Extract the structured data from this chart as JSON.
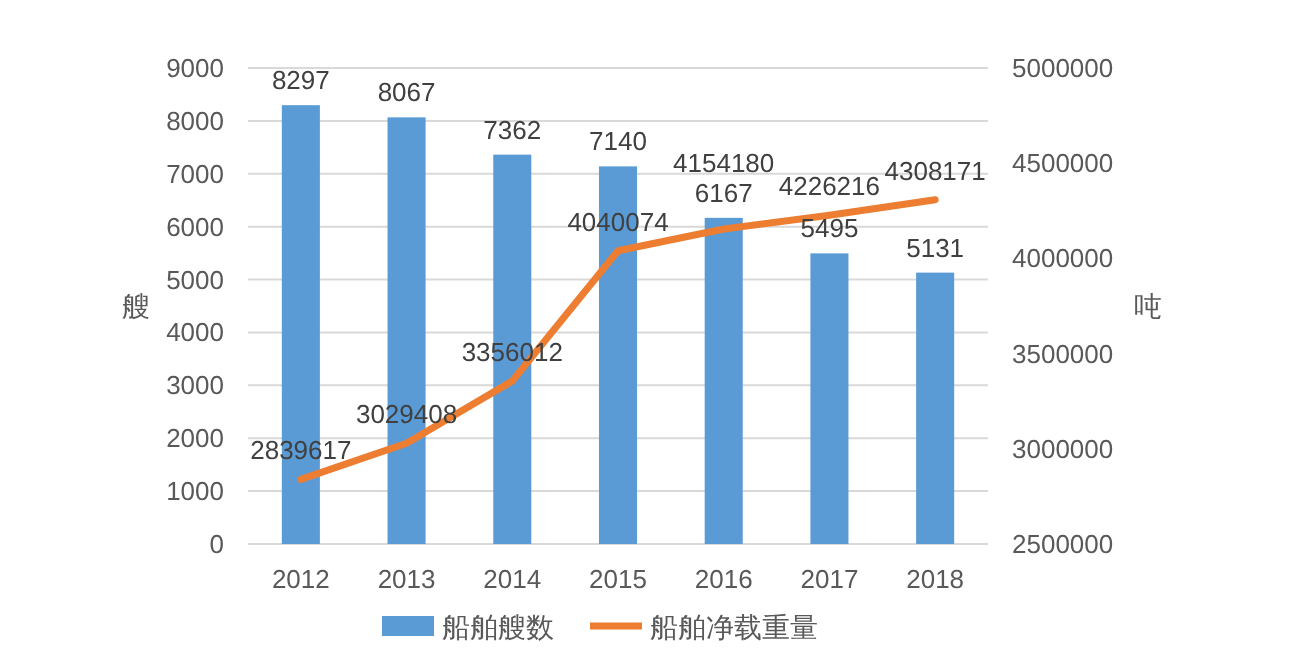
{
  "chart_data": {
    "type": "bar",
    "categories": [
      "2012",
      "2013",
      "2014",
      "2015",
      "2016",
      "2017",
      "2018"
    ],
    "series": [
      {
        "name": "船舶艘数",
        "color": "#5b9bd5",
        "values": [
          8297,
          8067,
          7362,
          7140,
          6167,
          5495,
          5131
        ]
      },
      {
        "name": "船舶净载重量",
        "type": "line",
        "axis": "y2",
        "color": "#ed7d31",
        "values": [
          2839617,
          3029408,
          3356012,
          4040074,
          4154180,
          4226216,
          4308171
        ]
      }
    ],
    "ylabel": "艘",
    "y2label": "吨",
    "ylim": [
      0,
      9000
    ],
    "yticks": [
      0,
      1000,
      2000,
      3000,
      4000,
      5000,
      6000,
      7000,
      8000,
      9000
    ],
    "y2lim": [
      2500000,
      5000000
    ],
    "y2ticks": [
      2500000,
      3000000,
      3500000,
      4000000,
      4500000,
      5000000
    ],
    "grid": "y",
    "legend": "bottom",
    "data_labels": true,
    "marker": "none",
    "line_style": "solid"
  }
}
